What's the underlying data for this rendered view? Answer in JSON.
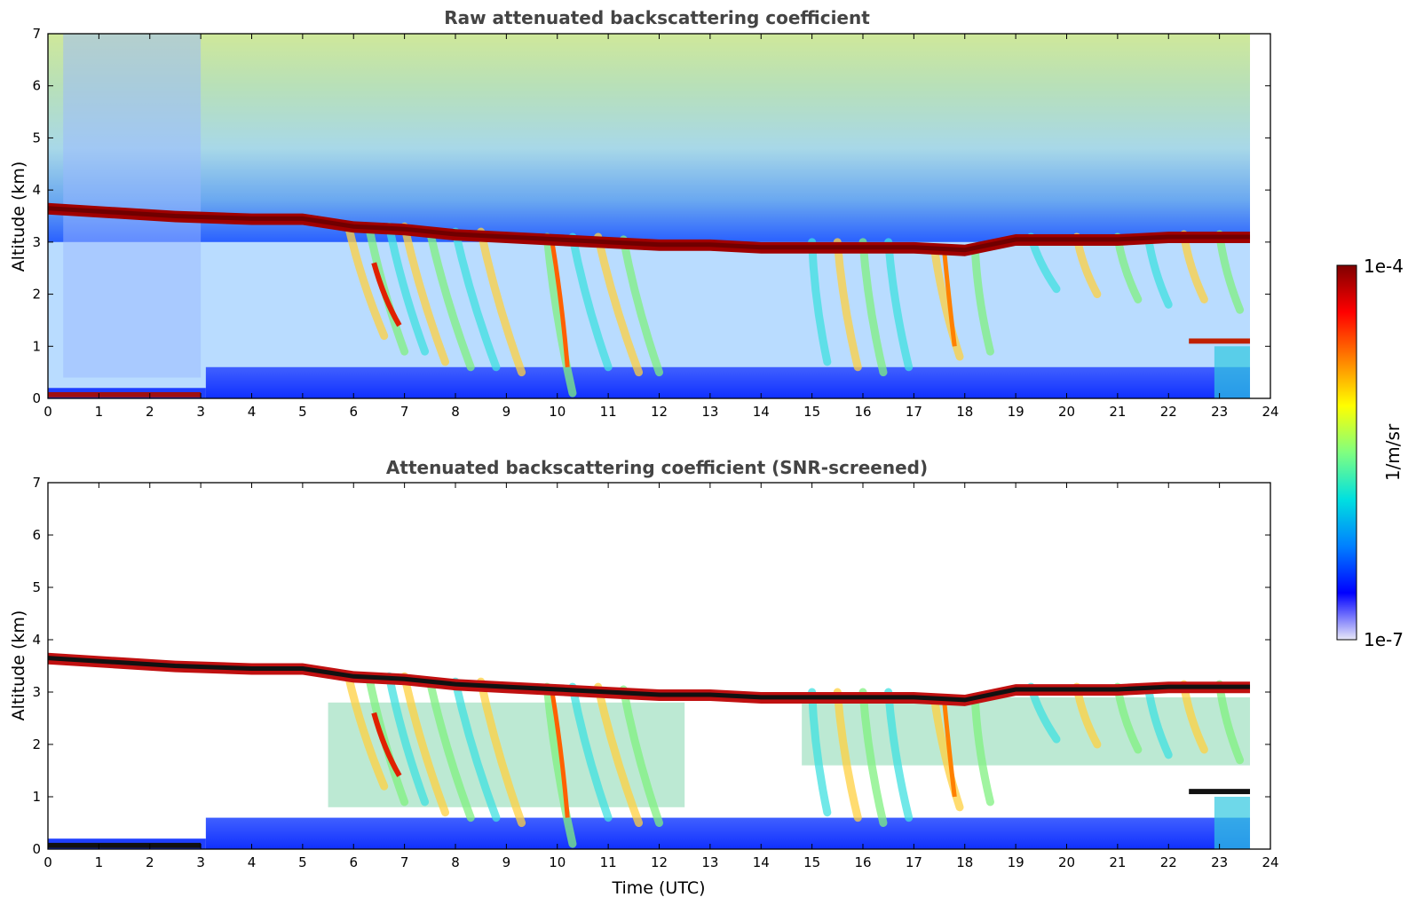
{
  "chart_data": [
    {
      "type": "heatmap",
      "title": "Raw attenuated backscattering coefficient",
      "xlabel": "",
      "ylabel": "Altitude (km)",
      "xlim": [
        0,
        24
      ],
      "ylim": [
        0,
        7
      ],
      "xticks": [
        "0",
        "1",
        "2",
        "3",
        "4",
        "5",
        "6",
        "7",
        "8",
        "9",
        "10",
        "11",
        "12",
        "13",
        "14",
        "15",
        "16",
        "17",
        "18",
        "19",
        "20",
        "21",
        "22",
        "23",
        "24"
      ],
      "yticks": [
        "0",
        "1",
        "2",
        "3",
        "4",
        "5",
        "6",
        "7"
      ],
      "cloud_top_km": [
        [
          0,
          3.75
        ],
        [
          2.5,
          3.6
        ],
        [
          4,
          3.55
        ],
        [
          5,
          3.55
        ],
        [
          6,
          3.4
        ],
        [
          7,
          3.35
        ],
        [
          8,
          3.25
        ],
        [
          9,
          3.2
        ],
        [
          10,
          3.15
        ],
        [
          11,
          3.1
        ],
        [
          12,
          3.05
        ],
        [
          13,
          3.05
        ],
        [
          14,
          3.0
        ],
        [
          15,
          3.0
        ],
        [
          16,
          3.0
        ],
        [
          17,
          3.0
        ],
        [
          18,
          2.95
        ],
        [
          19,
          3.15
        ],
        [
          20,
          3.15
        ],
        [
          21,
          3.15
        ],
        [
          22,
          3.2
        ],
        [
          23,
          3.2
        ],
        [
          23.6,
          3.2
        ]
      ],
      "low_layer": {
        "start": 22.4,
        "end": 23.6,
        "altitude_km": 1.1
      }
    },
    {
      "type": "heatmap",
      "title": "Attenuated backscattering coefficient (SNR-screened)",
      "xlabel": "Time (UTC)",
      "ylabel": "Altitude (km)",
      "xlim": [
        0,
        24
      ],
      "ylim": [
        0,
        7
      ],
      "xticks": [
        "0",
        "1",
        "2",
        "3",
        "4",
        "5",
        "6",
        "7",
        "8",
        "9",
        "10",
        "11",
        "12",
        "13",
        "14",
        "15",
        "16",
        "17",
        "18",
        "19",
        "20",
        "21",
        "22",
        "23",
        "24"
      ],
      "yticks": [
        "0",
        "1",
        "2",
        "3",
        "4",
        "5",
        "6",
        "7"
      ],
      "cloud_top_km": [
        [
          0,
          3.75
        ],
        [
          2.5,
          3.6
        ],
        [
          4,
          3.55
        ],
        [
          5,
          3.55
        ],
        [
          6,
          3.4
        ],
        [
          7,
          3.35
        ],
        [
          8,
          3.25
        ],
        [
          9,
          3.2
        ],
        [
          10,
          3.15
        ],
        [
          11,
          3.1
        ],
        [
          12,
          3.05
        ],
        [
          13,
          3.05
        ],
        [
          14,
          3.0
        ],
        [
          15,
          3.0
        ],
        [
          16,
          3.0
        ],
        [
          17,
          3.0
        ],
        [
          18,
          2.95
        ],
        [
          19,
          3.15
        ],
        [
          20,
          3.15
        ],
        [
          21,
          3.15
        ],
        [
          22,
          3.2
        ],
        [
          23,
          3.2
        ],
        [
          23.6,
          3.2
        ]
      ],
      "low_layer": {
        "start": 22.4,
        "end": 23.6,
        "altitude_km": 1.1
      }
    }
  ],
  "colorbar": {
    "max_label": "1e-4",
    "min_label": "1e-7",
    "unit_label": "1/m/sr",
    "colors": [
      "#e8e8f8",
      "#0000ff",
      "#0080ff",
      "#00e0e0",
      "#80ff80",
      "#ffff00",
      "#ff8000",
      "#ff0000",
      "#800000"
    ]
  }
}
